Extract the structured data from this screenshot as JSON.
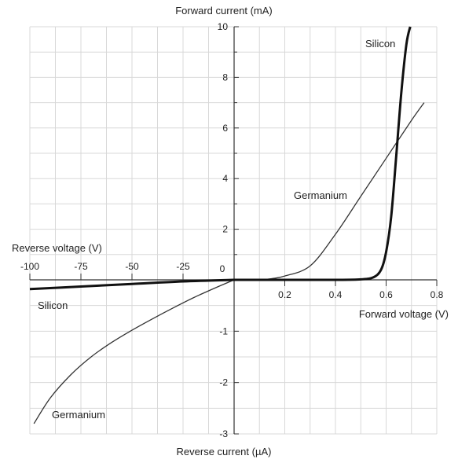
{
  "chart_data": {
    "type": "line",
    "x_axis_positive": {
      "label": "Forward voltage (V)",
      "unit": "V",
      "range": [
        0,
        0.8
      ],
      "ticks": [
        "0.2",
        "0.4",
        "0.6",
        "0.8"
      ],
      "tick_values": [
        0.2,
        0.4,
        0.6,
        0.8
      ]
    },
    "x_axis_negative": {
      "label": "Reverse voltage (V)",
      "unit": "V",
      "range": [
        -100,
        0
      ],
      "ticks": [
        "-100",
        "-75",
        "-50",
        "-25"
      ],
      "tick_values": [
        -100,
        -75,
        -50,
        -25
      ]
    },
    "y_axis_positive": {
      "label": "Forward current (mA)",
      "unit": "mA",
      "range": [
        0,
        10
      ],
      "ticks": [
        "2",
        "4",
        "6",
        "8",
        "10"
      ],
      "tick_values": [
        2,
        4,
        6,
        8,
        10
      ]
    },
    "y_axis_negative": {
      "label": "Reverse current (µA)",
      "unit": "µA",
      "range": [
        -3,
        0
      ],
      "ticks": [
        "-1",
        "-2",
        "-3"
      ],
      "tick_values": [
        -1,
        -2,
        -3
      ]
    },
    "origin_label": "0",
    "grid": true,
    "series": [
      {
        "name": "Silicon",
        "color": "#111111",
        "forward": [
          [
            0,
            0
          ],
          [
            0.2,
            0.0
          ],
          [
            0.4,
            0.0
          ],
          [
            0.5,
            0.02
          ],
          [
            0.55,
            0.1
          ],
          [
            0.58,
            0.4
          ],
          [
            0.6,
            1.1
          ],
          [
            0.62,
            2.5
          ],
          [
            0.64,
            4.9
          ],
          [
            0.66,
            7.4
          ],
          [
            0.68,
            9.3
          ],
          [
            0.695,
            10.0
          ]
        ],
        "reverse": [
          [
            0,
            0
          ],
          [
            -25,
            -0.03
          ],
          [
            -50,
            -0.08
          ],
          [
            -75,
            -0.13
          ],
          [
            -100,
            -0.18
          ]
        ]
      },
      {
        "name": "Germanium",
        "color": "#333333",
        "forward": [
          [
            0,
            0
          ],
          [
            0.1,
            0.0
          ],
          [
            0.15,
            0.05
          ],
          [
            0.2,
            0.15
          ],
          [
            0.3,
            0.55
          ],
          [
            0.4,
            1.8
          ],
          [
            0.5,
            3.3
          ],
          [
            0.6,
            4.8
          ],
          [
            0.7,
            6.3
          ],
          [
            0.75,
            7.0
          ]
        ],
        "reverse": [
          [
            0,
            0
          ],
          [
            -10,
            -0.17
          ],
          [
            -20,
            -0.35
          ],
          [
            -30,
            -0.55
          ],
          [
            -40,
            -0.76
          ],
          [
            -50,
            -0.98
          ],
          [
            -60,
            -1.22
          ],
          [
            -70,
            -1.5
          ],
          [
            -80,
            -1.85
          ],
          [
            -90,
            -2.3
          ],
          [
            -98,
            -2.8
          ]
        ]
      }
    ],
    "annotations": [
      {
        "text": "Silicon",
        "near": "forward-top",
        "series": "Silicon"
      },
      {
        "text": "Silicon",
        "near": "reverse-left",
        "series": "Silicon"
      },
      {
        "text": "Germanium",
        "near": "forward-middle",
        "series": "Germanium"
      },
      {
        "text": "Germanium",
        "near": "reverse-bottom-left",
        "series": "Germanium"
      }
    ]
  }
}
